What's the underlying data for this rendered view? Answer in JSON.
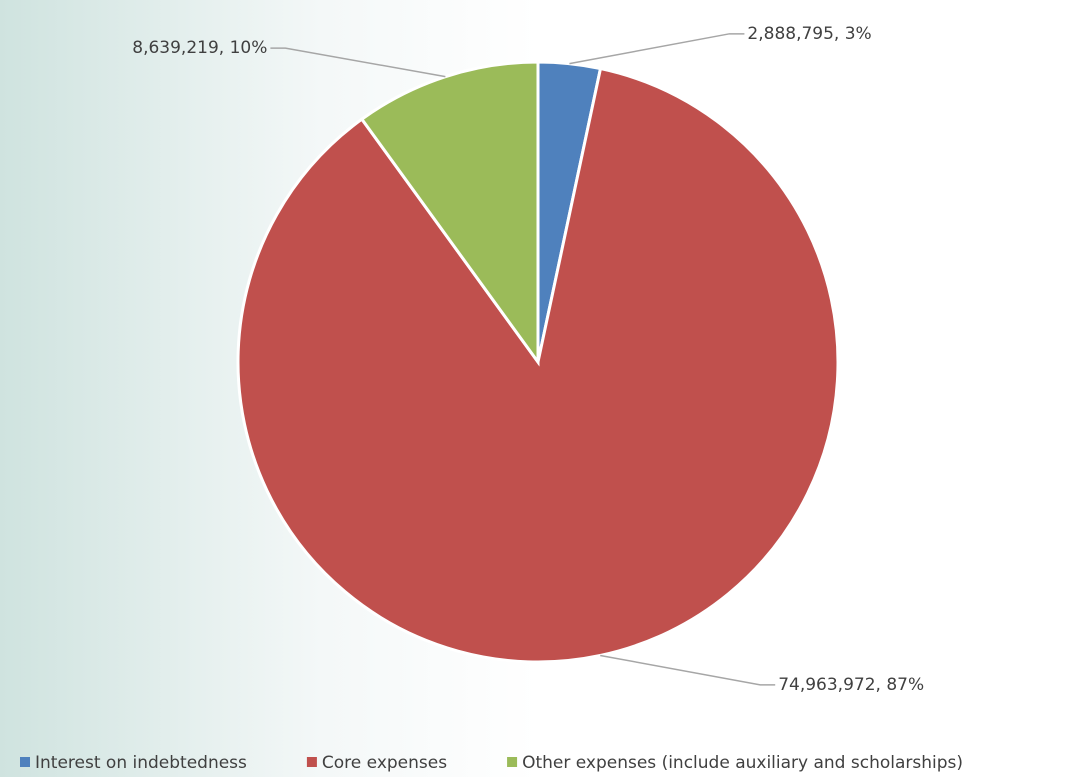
{
  "chart_data": {
    "type": "pie",
    "categories": [
      "Interest on indebtedness",
      "Core expenses",
      "Other expenses (include auxiliary and scholarships)"
    ],
    "values": [
      2888795,
      74963972,
      8639219
    ],
    "value_labels": [
      "2,888,795, 3%",
      "74,963,972, 87%",
      "8,639,219, 10%"
    ],
    "colors": [
      "#4f81bd",
      "#c0504d",
      "#9bbb59"
    ],
    "legend": "bottom"
  }
}
